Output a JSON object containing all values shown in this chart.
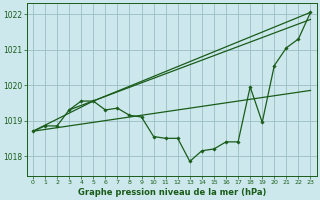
{
  "title": "Graphe pression niveau de la mer (hPa)",
  "background_color": "#cce8ec",
  "grid_color": "#9bbfc4",
  "line_color": "#1a5c1a",
  "xlim": [
    -0.5,
    23.5
  ],
  "ylim": [
    1017.45,
    1022.3
  ],
  "yticks": [
    1018,
    1019,
    1020,
    1021,
    1022
  ],
  "xticks": [
    0,
    1,
    2,
    3,
    4,
    5,
    6,
    7,
    8,
    9,
    10,
    11,
    12,
    13,
    14,
    15,
    16,
    17,
    18,
    19,
    20,
    21,
    22,
    23
  ],
  "series_main": {
    "x": [
      0,
      1,
      2,
      3,
      4,
      5,
      6,
      7,
      8,
      9,
      10,
      11,
      12,
      13,
      14,
      15,
      16,
      17,
      18,
      19,
      20,
      21,
      22,
      23
    ],
    "y": [
      1018.7,
      1018.85,
      1018.85,
      1019.3,
      1019.55,
      1019.55,
      1019.3,
      1019.35,
      1019.15,
      1019.1,
      1018.55,
      1018.5,
      1018.5,
      1017.85,
      1018.15,
      1018.2,
      1018.4,
      1018.4,
      1019.95,
      1018.95,
      1020.55,
      1021.05,
      1021.3,
      1022.05
    ]
  },
  "series_upper": {
    "x": [
      0,
      5,
      23
    ],
    "y": [
      1018.7,
      1019.55,
      1022.05
    ]
  },
  "series_lower": {
    "x": [
      0,
      23
    ],
    "y": [
      1018.7,
      1019.85
    ]
  },
  "series_mid": {
    "x": [
      3,
      23
    ],
    "y": [
      1019.3,
      1021.85
    ]
  }
}
